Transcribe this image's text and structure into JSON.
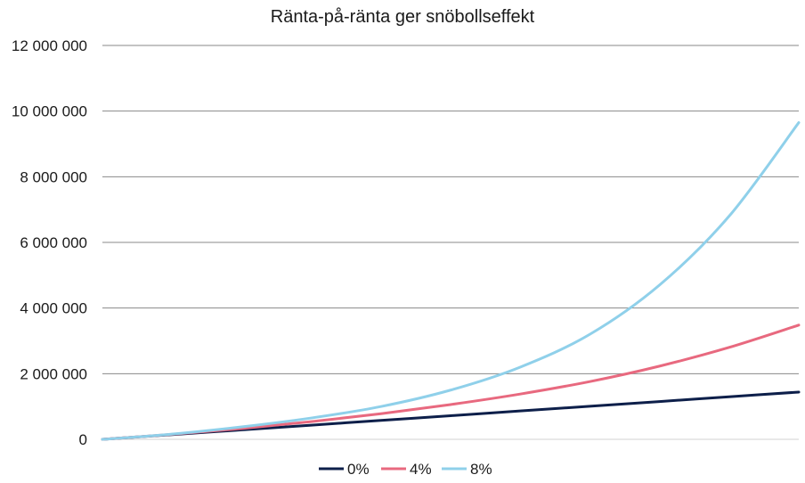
{
  "chart_data": {
    "type": "line",
    "title": "Ränta-på-ränta ger snöbollseffekt",
    "xlabel": "",
    "ylabel": "",
    "x_range": [
      0,
      30
    ],
    "ylim": [
      0,
      12000000
    ],
    "y_ticks": [
      0,
      2000000,
      4000000,
      6000000,
      8000000,
      10000000,
      12000000
    ],
    "y_tick_labels": [
      "0",
      "2 000 000",
      "4 000 000",
      "6 000 000",
      "8 000 000",
      "10 000 000",
      "12 000 000"
    ],
    "grid": true,
    "legend_position": "bottom",
    "series": [
      {
        "name": "0%",
        "color": "#0d1f4a",
        "points": [
          [
            0,
            0
          ],
          [
            3,
            144000
          ],
          [
            6,
            288000
          ],
          [
            9,
            432000
          ],
          [
            12,
            576000
          ],
          [
            15,
            720000
          ],
          [
            18,
            864000
          ],
          [
            21,
            1008000
          ],
          [
            24,
            1152000
          ],
          [
            27,
            1296000
          ],
          [
            30,
            1440000
          ]
        ]
      },
      {
        "name": "4%",
        "color": "#e8697f",
        "points": [
          [
            0,
            0
          ],
          [
            3,
            152000
          ],
          [
            6,
            330000
          ],
          [
            9,
            540000
          ],
          [
            12,
            780000
          ],
          [
            15,
            1060000
          ],
          [
            18,
            1380000
          ],
          [
            21,
            1760000
          ],
          [
            24,
            2230000
          ],
          [
            27,
            2800000
          ],
          [
            30,
            3480000
          ]
        ]
      },
      {
        "name": "8%",
        "color": "#8fd0ea",
        "points": [
          [
            0,
            0
          ],
          [
            3,
            160000
          ],
          [
            6,
            380000
          ],
          [
            9,
            650000
          ],
          [
            12,
            1000000
          ],
          [
            15,
            1500000
          ],
          [
            18,
            2200000
          ],
          [
            21,
            3200000
          ],
          [
            24,
            4700000
          ],
          [
            27,
            6800000
          ],
          [
            30,
            9650000
          ]
        ]
      }
    ]
  }
}
